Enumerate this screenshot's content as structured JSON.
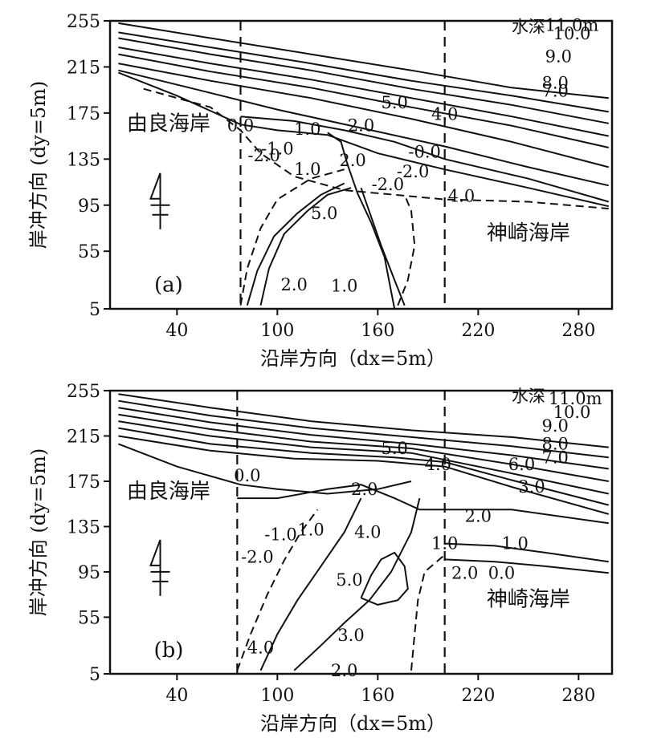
{
  "chart_data": [
    {
      "type": "contour",
      "panel_label": "(a)",
      "xlabel": "沿岸方向（dx=5m）",
      "ylabel": "岸冲方向 (dy=5m)",
      "xticks": [
        "40",
        "100",
        "160",
        "220",
        "280"
      ],
      "yticks": [
        "255",
        "215",
        "175",
        "135",
        "95",
        "55",
        "5"
      ],
      "xlim": [
        0,
        300
      ],
      "ylim": [
        5,
        255
      ],
      "dividers_x": [
        78,
        200
      ],
      "regions": [
        "由良海岸",
        "神崎海岸"
      ],
      "depth_title": "水深",
      "contour_labels": [
        "11.0m",
        "10.0",
        "9.0",
        "8.0",
        "7.0",
        "5.0",
        "4.0",
        "2.0",
        "1.0",
        "0.0",
        "-2.0",
        "-1.0",
        "1.0",
        "2.0",
        "-0.0",
        "-2.0",
        "-2.0",
        "4.0",
        "5.0",
        "2.0",
        "1.0"
      ],
      "contours": [
        {
          "level": 11.0,
          "pts": [
            [
              5,
              253
            ],
            [
              60,
              240
            ],
            [
              120,
              226
            ],
            [
              180,
              212
            ],
            [
              240,
              197
            ],
            [
              298,
              188
            ]
          ]
        },
        {
          "level": 10.0,
          "pts": [
            [
              5,
              245
            ],
            [
              60,
              232
            ],
            [
              120,
              218
            ],
            [
              180,
              203
            ],
            [
              240,
              190
            ],
            [
              298,
              176
            ]
          ]
        },
        {
          "level": 9.0,
          "pts": [
            [
              5,
              240
            ],
            [
              60,
              226
            ],
            [
              120,
              212
            ],
            [
              180,
              196
            ],
            [
              240,
              182
            ],
            [
              298,
              166
            ]
          ]
        },
        {
          "level": 8.0,
          "pts": [
            [
              5,
              232
            ],
            [
              60,
              218
            ],
            [
              120,
              204
            ],
            [
              180,
              188
            ],
            [
              240,
              172
            ],
            [
              298,
              155
            ]
          ]
        },
        {
          "level": 7.0,
          "pts": [
            [
              5,
              226
            ],
            [
              60,
              211
            ],
            [
              120,
              197
            ],
            [
              180,
              180
            ],
            [
              240,
              164
            ],
            [
              298,
              145
            ]
          ]
        },
        {
          "level": 5.0,
          "pts": [
            [
              5,
              218
            ],
            [
              60,
              203
            ],
            [
              120,
              188
            ],
            [
              180,
              170
            ],
            [
              240,
              150
            ],
            [
              298,
              128
            ]
          ]
        },
        {
          "level": 4.0,
          "pts": [
            [
              5,
              212
            ],
            [
              50,
              196
            ],
            [
              100,
              178
            ],
            [
              150,
              162
            ],
            [
              200,
              146
            ],
            [
              250,
              128
            ],
            [
              298,
              112
            ]
          ]
        },
        {
          "level": 2.0,
          "pts": [
            [
              78,
              172
            ],
            [
              110,
              168
            ],
            [
              140,
              160
            ],
            [
              170,
              150
            ],
            [
              200,
              135
            ],
            [
              250,
              118
            ],
            [
              298,
              98
            ]
          ]
        },
        {
          "level": 0.0,
          "pts": [
            [
              5,
              210
            ],
            [
              40,
              190
            ],
            [
              78,
              165
            ],
            [
              100,
              160
            ],
            [
              130,
              156
            ],
            [
              160,
              140
            ],
            [
              200,
              126
            ],
            [
              250,
              110
            ],
            [
              298,
              94
            ]
          ]
        },
        {
          "level": -2.0,
          "pts": [
            [
              20,
              196
            ],
            [
              60,
              180
            ],
            [
              78,
              160
            ],
            [
              90,
              140
            ],
            [
              110,
              120
            ],
            [
              140,
              108
            ],
            [
              170,
              104
            ],
            [
              200,
              100
            ],
            [
              250,
              98
            ],
            [
              298,
              92
            ]
          ]
        },
        {
          "level": 1.0,
          "pts": [
            [
              130,
              158
            ],
            [
              138,
              150
            ],
            [
              142,
              130
            ],
            [
              148,
              105
            ],
            [
              156,
              80
            ],
            [
              164,
              50
            ],
            [
              168,
              20
            ],
            [
              170,
              5
            ]
          ]
        },
        {
          "level": 4.0,
          "pts": [
            [
              90,
              8
            ],
            [
              95,
              40
            ],
            [
              104,
              70
            ],
            [
              118,
              90
            ],
            [
              130,
              104
            ],
            [
              144,
              110
            ]
          ]
        },
        {
          "level": 5.0,
          "pts": [
            [
              82,
              8
            ],
            [
              88,
              38
            ],
            [
              98,
              68
            ],
            [
              112,
              88
            ],
            [
              126,
              104
            ],
            [
              140,
              114
            ]
          ]
        },
        {
          "level": 2.0,
          "pts": [
            [
              150,
              110
            ],
            [
              156,
              85
            ],
            [
              162,
              60
            ],
            [
              170,
              30
            ],
            [
              176,
              8
            ]
          ]
        },
        {
          "level": -1.0,
          "pts": [
            [
              78,
              8
            ],
            [
              82,
              40
            ],
            [
              90,
              75
            ],
            [
              100,
              100
            ],
            [
              120,
              118
            ],
            [
              140,
              126
            ]
          ]
        },
        {
          "level": -2.0,
          "pts": [
            [
              172,
              8
            ],
            [
              178,
              30
            ],
            [
              182,
              60
            ],
            [
              180,
              90
            ],
            [
              176,
              104
            ]
          ]
        }
      ]
    },
    {
      "type": "contour",
      "panel_label": "(b)",
      "xlabel": "沿岸方向（dx=5m）",
      "ylabel": "岸冲方向 (dy=5m)",
      "xticks": [
        "40",
        "100",
        "160",
        "220",
        "280"
      ],
      "yticks": [
        "255",
        "215",
        "175",
        "135",
        "95",
        "55",
        "5"
      ],
      "xlim": [
        0,
        300
      ],
      "ylim": [
        5,
        255
      ],
      "dividers_x": [
        76,
        200
      ],
      "regions": [
        "由良海岸",
        "神崎海岸"
      ],
      "depth_title": "水深",
      "contour_labels": [
        "11.0m",
        "10.0",
        "9.0",
        "8.0",
        "7.0",
        "6.0",
        "5.0",
        "4.0",
        "3.0",
        "2.0",
        "1.0",
        "0.0",
        "-1.0",
        "-2.0",
        "1.0",
        "4.0",
        "5.0",
        "2.0",
        "1.0",
        "2.0",
        "0.0",
        "3.0",
        "4.0",
        "2.0"
      ],
      "contours": [
        {
          "level": 11.0,
          "pts": [
            [
              5,
              252
            ],
            [
              60,
              240
            ],
            [
              120,
              228
            ],
            [
              180,
              220
            ],
            [
              240,
              214
            ],
            [
              298,
              205
            ]
          ]
        },
        {
          "level": 10.0,
          "pts": [
            [
              5,
              246
            ],
            [
              60,
              233
            ],
            [
              120,
              222
            ],
            [
              180,
              214
            ],
            [
              240,
              206
            ],
            [
              298,
              196
            ]
          ]
        },
        {
          "level": 9.0,
          "pts": [
            [
              5,
              240
            ],
            [
              60,
              227
            ],
            [
              120,
              216
            ],
            [
              180,
              208
            ],
            [
              240,
              198
            ],
            [
              298,
              186
            ]
          ]
        },
        {
          "level": 8.0,
          "pts": [
            [
              5,
              234
            ],
            [
              60,
              221
            ],
            [
              120,
              210
            ],
            [
              180,
              204
            ],
            [
              240,
              190
            ],
            [
              298,
              175
            ]
          ]
        },
        {
          "level": 7.0,
          "pts": [
            [
              5,
              228
            ],
            [
              60,
              215
            ],
            [
              120,
              205
            ],
            [
              180,
              200
            ],
            [
              240,
              182
            ],
            [
              298,
              164
            ]
          ]
        },
        {
          "level": 5.0,
          "pts": [
            [
              5,
              222
            ],
            [
              60,
              208
            ],
            [
              120,
              200
            ],
            [
              170,
              196
            ],
            [
              200,
              192
            ],
            [
              240,
              176
            ],
            [
              298,
              154
            ]
          ]
        },
        {
          "level": 4.0,
          "pts": [
            [
              5,
              215
            ],
            [
              60,
              202
            ],
            [
              110,
              195
            ],
            [
              160,
              193
            ],
            [
              200,
              188
            ],
            [
              240,
              170
            ],
            [
              298,
              146
            ]
          ]
        },
        {
          "level": 0.0,
          "pts": [
            [
              5,
              208
            ],
            [
              40,
              188
            ],
            [
              78,
              172
            ],
            [
              100,
              168
            ],
            [
              130,
              164
            ],
            [
              160,
              168
            ],
            [
              180,
              175
            ]
          ]
        },
        {
          "level": 2.0,
          "pts": [
            [
              76,
              160
            ],
            [
              100,
              160
            ],
            [
              130,
              168
            ],
            [
              150,
              172
            ],
            [
              170,
              160
            ],
            [
              185,
              150
            ],
            [
              200,
              150
            ],
            [
              240,
              150
            ],
            [
              298,
              138
            ]
          ]
        },
        {
          "level": 1.0,
          "pts": [
            [
              200,
              120
            ],
            [
              230,
              118
            ],
            [
              260,
              112
            ],
            [
              298,
              104
            ]
          ]
        },
        {
          "level": 0.0,
          "pts": [
            [
              200,
              106
            ],
            [
              230,
              104
            ],
            [
              260,
              100
            ],
            [
              298,
              94
            ]
          ]
        },
        {
          "level": -2.0,
          "pts": [
            [
              180,
              8
            ],
            [
              182,
              40
            ],
            [
              184,
              70
            ],
            [
              188,
              95
            ],
            [
              200,
              110
            ]
          ]
        },
        {
          "level": -1.0,
          "pts": [
            [
              76,
              8
            ],
            [
              84,
              40
            ],
            [
              94,
              75
            ],
            [
              104,
              105
            ],
            [
              114,
              130
            ],
            [
              124,
              150
            ]
          ]
        },
        {
          "level": 4.0,
          "pts": [
            [
              90,
              8
            ],
            [
              100,
              40
            ],
            [
              112,
              70
            ],
            [
              126,
              100
            ],
            [
              140,
              130
            ],
            [
              150,
              160
            ]
          ]
        },
        {
          "level": 3.0,
          "pts": [
            [
              110,
              8
            ],
            [
              126,
              30
            ],
            [
              140,
              50
            ],
            [
              155,
              70
            ],
            [
              168,
              95
            ],
            [
              180,
              130
            ],
            [
              185,
              160
            ]
          ]
        },
        {
          "level": 5.0,
          "pts": [
            [
              150,
              72
            ],
            [
              156,
              92
            ],
            [
              162,
              106
            ],
            [
              170,
              112
            ],
            [
              176,
              100
            ],
            [
              178,
              80
            ],
            [
              172,
              70
            ],
            [
              160,
              66
            ],
            [
              150,
              72
            ]
          ]
        }
      ]
    }
  ]
}
